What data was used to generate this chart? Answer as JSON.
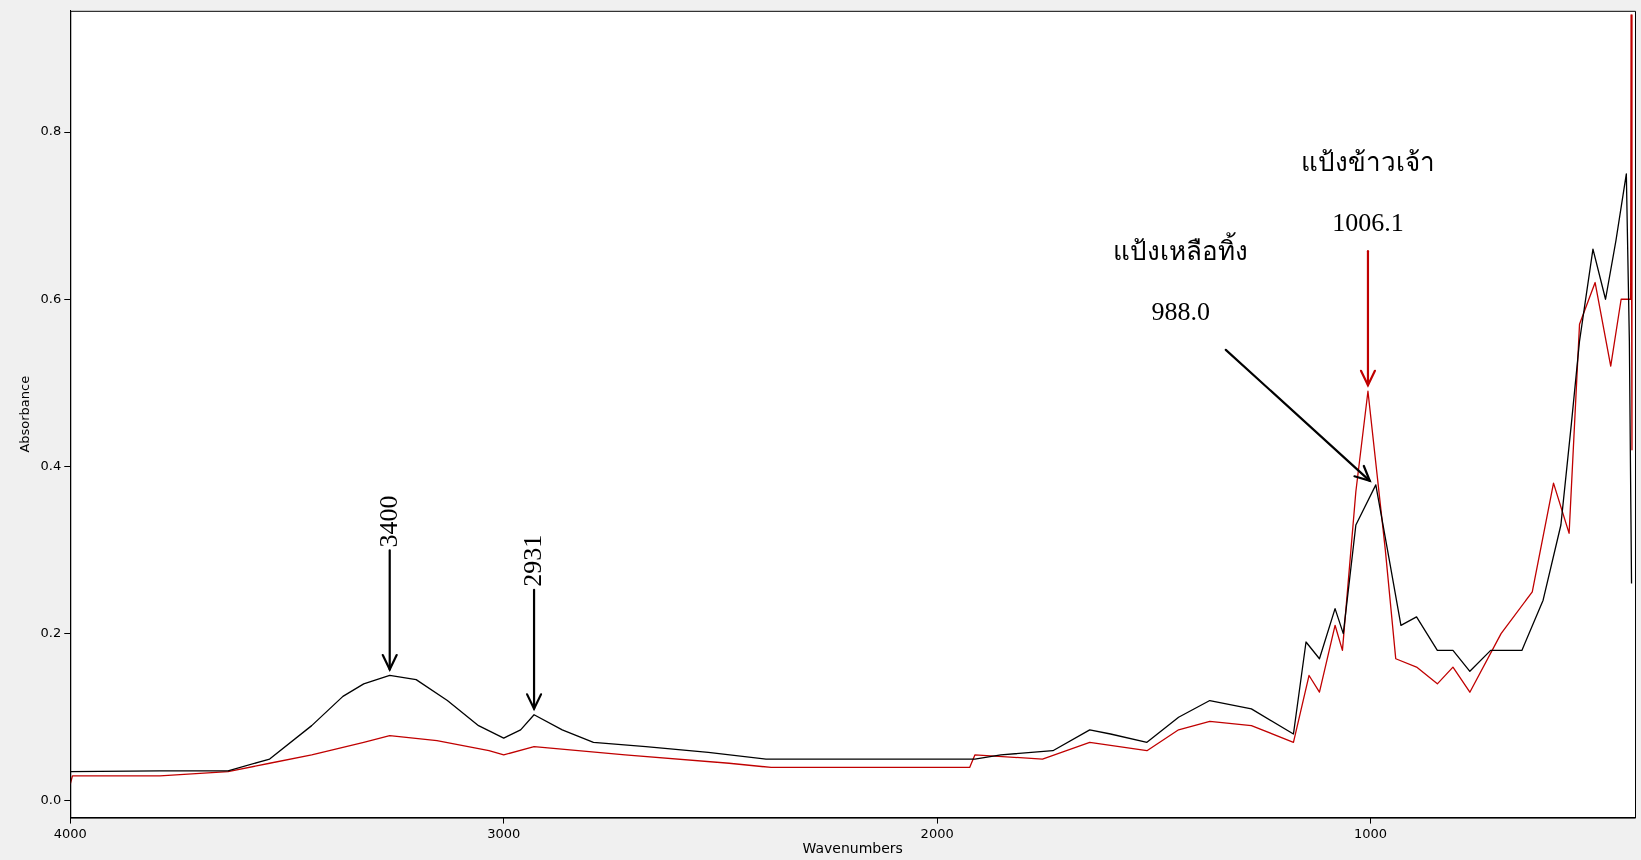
{
  "chart_data": {
    "type": "line",
    "xlabel": "Wavenumbers",
    "ylabel": "Absorbance",
    "xlim": [
      4000,
      390
    ],
    "xticks": [
      4000,
      3000,
      2000,
      1000
    ],
    "ylim": [
      -0.02,
      0.945
    ],
    "yticks": [
      {
        "value": 0,
        "label": "0.0"
      },
      {
        "value": 0.2,
        "label": "0.2"
      },
      {
        "value": 0.4,
        "label": "0.4"
      },
      {
        "value": 0.6,
        "label": "0.6"
      },
      {
        "value": 0.8,
        "label": "0.8"
      }
    ],
    "grid": false,
    "legend": false,
    "marker": "none",
    "line_style": "solid",
    "series": [
      {
        "color": "#000000",
        "x": [
          4000,
          3793,
          3636,
          3540,
          3443,
          3371,
          3323,
          3263,
          3202,
          3130,
          3058,
          3000,
          2961,
          2930,
          2865,
          2793,
          2672,
          2528,
          2395,
          1913,
          1853,
          1733,
          1648,
          1600,
          1516,
          1443,
          1371,
          1275,
          1178,
          1149,
          1118,
          1082,
          1063,
          1034,
          988,
          954,
          930,
          894,
          846,
          810,
          771,
          723,
          651,
          602,
          561,
          537,
          518,
          487,
          458,
          434,
          410,
          403,
          398
        ],
        "values": [
          0.035,
          0.036,
          0.036,
          0.05,
          0.09,
          0.125,
          0.14,
          0.15,
          0.145,
          0.12,
          0.09,
          0.075,
          0.085,
          0.103,
          0.085,
          0.07,
          0.065,
          0.058,
          0.05,
          0.05,
          0.055,
          0.06,
          0.085,
          0.08,
          0.07,
          0.1,
          0.12,
          0.11,
          0.08,
          0.19,
          0.17,
          0.23,
          0.2,
          0.33,
          0.378,
          0.28,
          0.21,
          0.22,
          0.18,
          0.18,
          0.155,
          0.18,
          0.18,
          0.24,
          0.33,
          0.45,
          0.55,
          0.66,
          0.6,
          0.67,
          0.75,
          0.55,
          0.26
        ]
      },
      {
        "color": "#c00000",
        "x": [
          4000,
          3995,
          3793,
          3636,
          3540,
          3443,
          3323,
          3263,
          3154,
          3034,
          3000,
          2930,
          2720,
          2480,
          2383,
          1925,
          1913,
          1757,
          1648,
          1516,
          1443,
          1371,
          1275,
          1178,
          1142,
          1118,
          1082,
          1065,
          1034,
          1006.1,
          966,
          942,
          894,
          846,
          810,
          771,
          699,
          627,
          578,
          542,
          518,
          482,
          446,
          422,
          400,
          399,
          397
        ],
        "values": [
          0.02,
          0.03,
          0.03,
          0.035,
          0.045,
          0.055,
          0.07,
          0.078,
          0.072,
          0.06,
          0.055,
          0.065,
          0.055,
          0.045,
          0.04,
          0.04,
          0.055,
          0.05,
          0.07,
          0.06,
          0.085,
          0.095,
          0.09,
          0.07,
          0.15,
          0.13,
          0.21,
          0.18,
          0.37,
          0.49,
          0.3,
          0.17,
          0.16,
          0.14,
          0.16,
          0.13,
          0.2,
          0.25,
          0.38,
          0.32,
          0.57,
          0.62,
          0.52,
          0.6,
          0.6,
          0.94,
          0.42
        ]
      }
    ],
    "annotations": [
      {
        "text": "3400",
        "x": 3263,
        "y": 0.15
      },
      {
        "text": "2931",
        "x": 2930,
        "y": 0.103
      },
      "แป้งข้าวเจ้า",
      {
        "text": "1006.1",
        "x": 1006.1,
        "y": 0.49
      },
      "แป้งเหลือทิ้ง",
      {
        "text": "988.0",
        "x": 988,
        "y": 0.378
      }
    ]
  }
}
